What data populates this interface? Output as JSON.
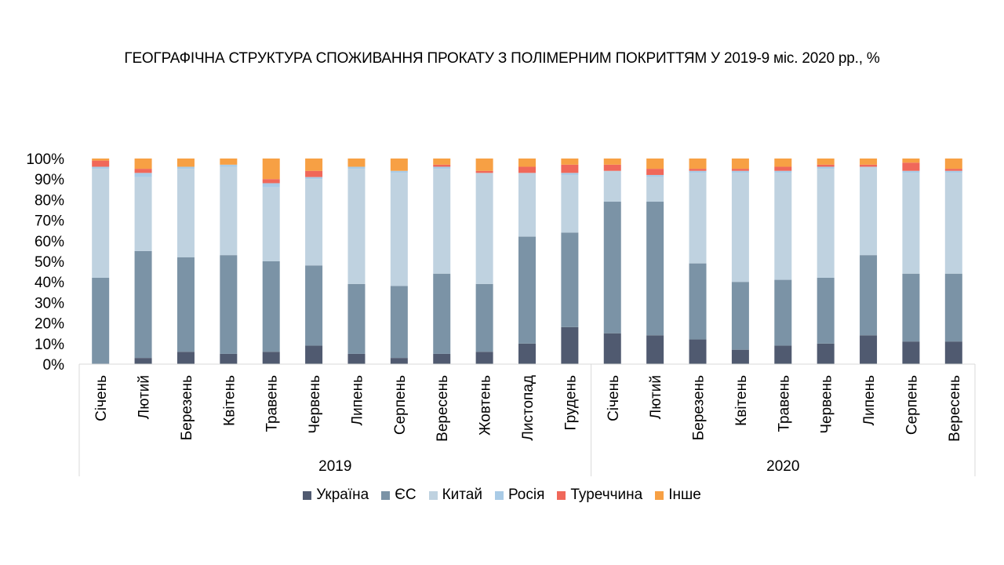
{
  "chart_data": {
    "type": "bar",
    "stacked": true,
    "title": "ГЕОГРАФІЧНА СТРУКТУРА СПОЖИВАННЯ ПРОКАТУ З ПОЛІМЕРНИМ ПОКРИТТЯМ У 2019-9 міс. 2020 рр., %",
    "ylim": [
      0,
      100
    ],
    "yticks": [
      "0%",
      "10%",
      "20%",
      "30%",
      "40%",
      "50%",
      "60%",
      "70%",
      "80%",
      "90%",
      "100%"
    ],
    "groups": [
      {
        "label": "2019",
        "count": 12
      },
      {
        "label": "2020",
        "count": 9
      }
    ],
    "categories": [
      "Січень",
      "Лютий",
      "Березень",
      "Квітень",
      "Травень",
      "Червень",
      "Липень",
      "Серпень",
      "Вересень",
      "Жовтень",
      "Листопад",
      "Грудень",
      "Січень",
      "Лютий",
      "Березень",
      "Квітень",
      "Травень",
      "Червень",
      "Липень",
      "Серпень",
      "Вересень"
    ],
    "legend_position": "bottom",
    "series": [
      {
        "name": "Україна",
        "color": "#505a70",
        "values": [
          0,
          3,
          6,
          5,
          6,
          9,
          5,
          3,
          5,
          6,
          10,
          18,
          15,
          14,
          12,
          7,
          9,
          10,
          14,
          11,
          11
        ]
      },
      {
        "name": "ЄС",
        "color": "#7b93a6",
        "values": [
          42,
          52,
          46,
          48,
          44,
          39,
          34,
          35,
          39,
          33,
          52,
          46,
          64,
          65,
          37,
          33,
          32,
          32,
          39,
          33,
          33
        ]
      },
      {
        "name": "Китай",
        "color": "#bfd2e0",
        "values": [
          53,
          36,
          43,
          43,
          36,
          42,
          56,
          55,
          51,
          54,
          31,
          28,
          15,
          12,
          44,
          53,
          52,
          53,
          43,
          49,
          49
        ]
      },
      {
        "name": "Росія",
        "color": "#a9cbe6",
        "values": [
          1,
          2,
          1,
          1,
          2,
          1,
          1,
          1,
          1,
          0,
          0,
          1,
          0,
          1,
          1,
          1,
          1,
          1,
          0,
          1,
          1
        ]
      },
      {
        "name": "Туреччина",
        "color": "#f0685a",
        "values": [
          3,
          2,
          0,
          0,
          2,
          3,
          0,
          0,
          1,
          1,
          3,
          4,
          3,
          3,
          1,
          1,
          2,
          1,
          1,
          4,
          1
        ]
      },
      {
        "name": "Інше",
        "color": "#f7a044",
        "values": [
          1,
          5,
          4,
          3,
          10,
          6,
          4,
          6,
          3,
          6,
          4,
          3,
          3,
          5,
          5,
          5,
          4,
          3,
          3,
          2,
          5
        ]
      }
    ]
  }
}
